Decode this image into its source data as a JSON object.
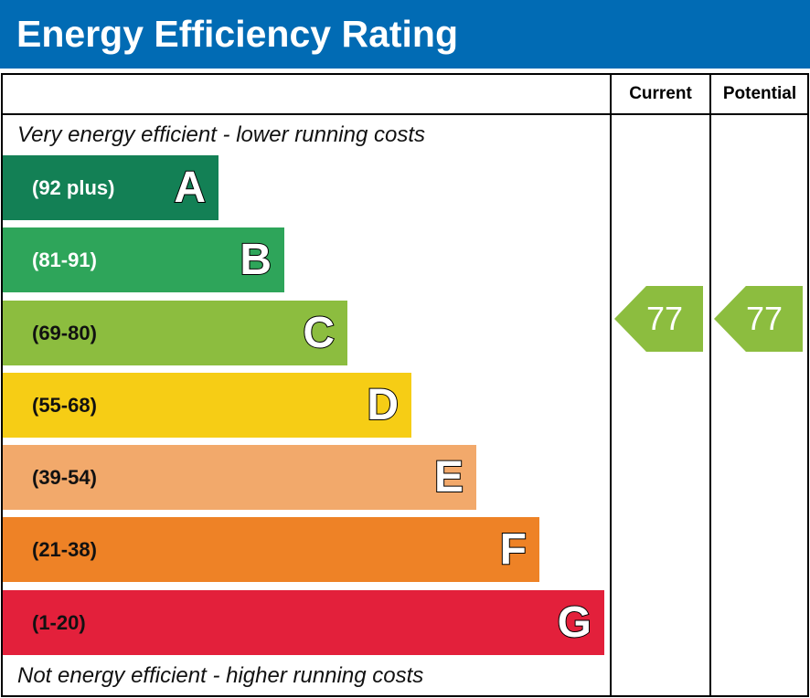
{
  "title": "Energy Efficiency Rating",
  "chart_data": {
    "type": "bar",
    "title": "Energy Efficiency Rating",
    "columns": [
      "Current",
      "Potential"
    ],
    "top_note": "Very energy efficient - lower running costs",
    "bottom_note": "Not energy efficient - higher running costs",
    "bands": [
      {
        "letter": "A",
        "range": "(92 plus)",
        "color": "#138055",
        "text_color": "#ffffff"
      },
      {
        "letter": "B",
        "range": "(81-91)",
        "color": "#2ea55a",
        "text_color": "#ffffff"
      },
      {
        "letter": "C",
        "range": "(69-80)",
        "color": "#8cbd3f",
        "text_color": "#111111"
      },
      {
        "letter": "D",
        "range": "(55-68)",
        "color": "#f6cd15",
        "text_color": "#111111"
      },
      {
        "letter": "E",
        "range": "(39-54)",
        "color": "#f2a96b",
        "text_color": "#111111"
      },
      {
        "letter": "F",
        "range": "(21-38)",
        "color": "#ee8226",
        "text_color": "#111111"
      },
      {
        "letter": "G",
        "range": "(1-20)",
        "color": "#e3203b",
        "text_color": "#111111"
      }
    ],
    "current": {
      "value": "77",
      "band": "C",
      "color": "#8cbd3f"
    },
    "potential": {
      "value": "77",
      "band": "C",
      "color": "#8cbd3f"
    }
  }
}
